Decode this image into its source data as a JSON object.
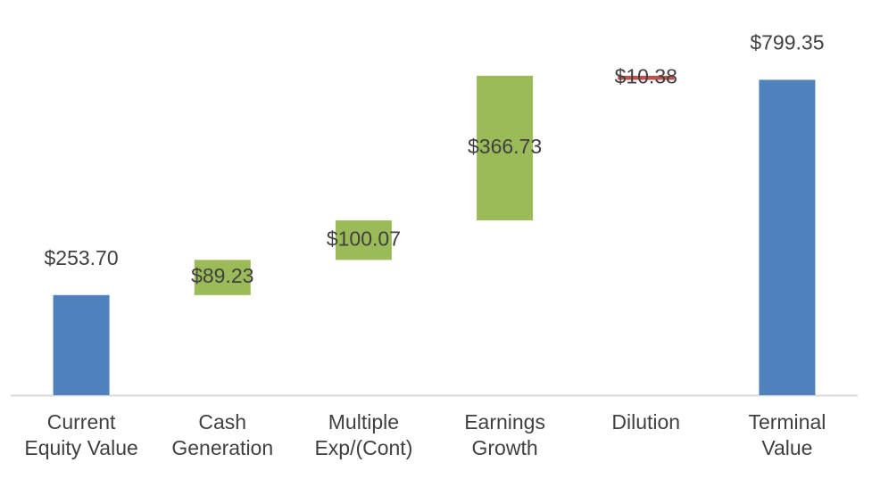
{
  "chart_data": {
    "type": "waterfall",
    "categories": [
      "Current Equity Value",
      "Cash Generation",
      "Multiple Exp/(Cont)",
      "Earnings Growth",
      "Dilution",
      "Terminal Value"
    ],
    "values": [
      253.7,
      89.23,
      100.07,
      366.73,
      -10.38,
      799.35
    ],
    "value_labels": [
      "$253.70",
      "$89.23",
      "$100.07",
      "$366.73",
      "$10.38",
      "$799.35"
    ],
    "is_total": [
      true,
      false,
      false,
      false,
      false,
      true
    ],
    "colors": {
      "total": "#4f81bd",
      "increase": "#9bbb59",
      "decrease": "#c0504d"
    },
    "ylim": [
      0,
      900
    ]
  }
}
